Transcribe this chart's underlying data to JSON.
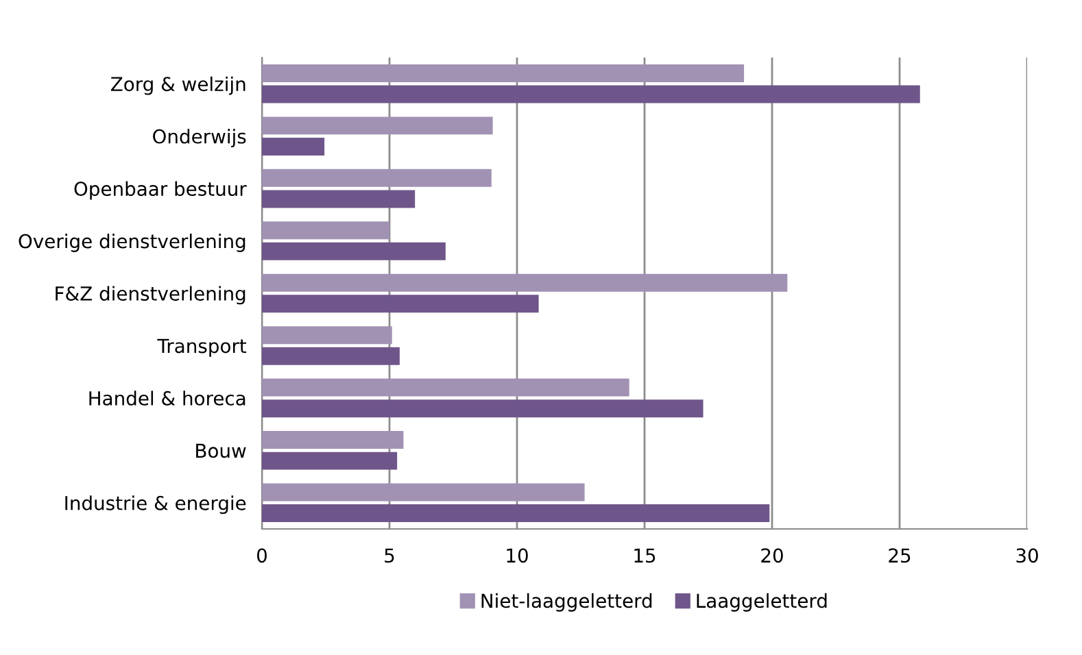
{
  "chart_data": {
    "type": "bar",
    "orientation": "horizontal",
    "categories": [
      "Zorg & welzijn",
      "Onderwijs",
      "Openbaar bestuur",
      "Overige dienstverlening",
      "F&Z dienstverlening",
      "Transport",
      "Handel & horeca",
      "Bouw",
      "Industrie & energie"
    ],
    "series": [
      {
        "name": "Niet-laaggeletterd",
        "color": "#a192b4",
        "values": [
          18.9,
          9.05,
          9.0,
          5.0,
          20.6,
          5.1,
          14.4,
          5.55,
          12.65
        ]
      },
      {
        "name": "Laaggeletterd",
        "color": "#6f568a",
        "values": [
          25.8,
          2.45,
          6.0,
          7.2,
          10.85,
          5.4,
          17.3,
          5.3,
          19.9
        ]
      }
    ],
    "xlim": [
      0,
      30
    ],
    "xticks": [
      0,
      5,
      10,
      15,
      20,
      25,
      30
    ],
    "grid": "x",
    "legend": "bottom"
  }
}
